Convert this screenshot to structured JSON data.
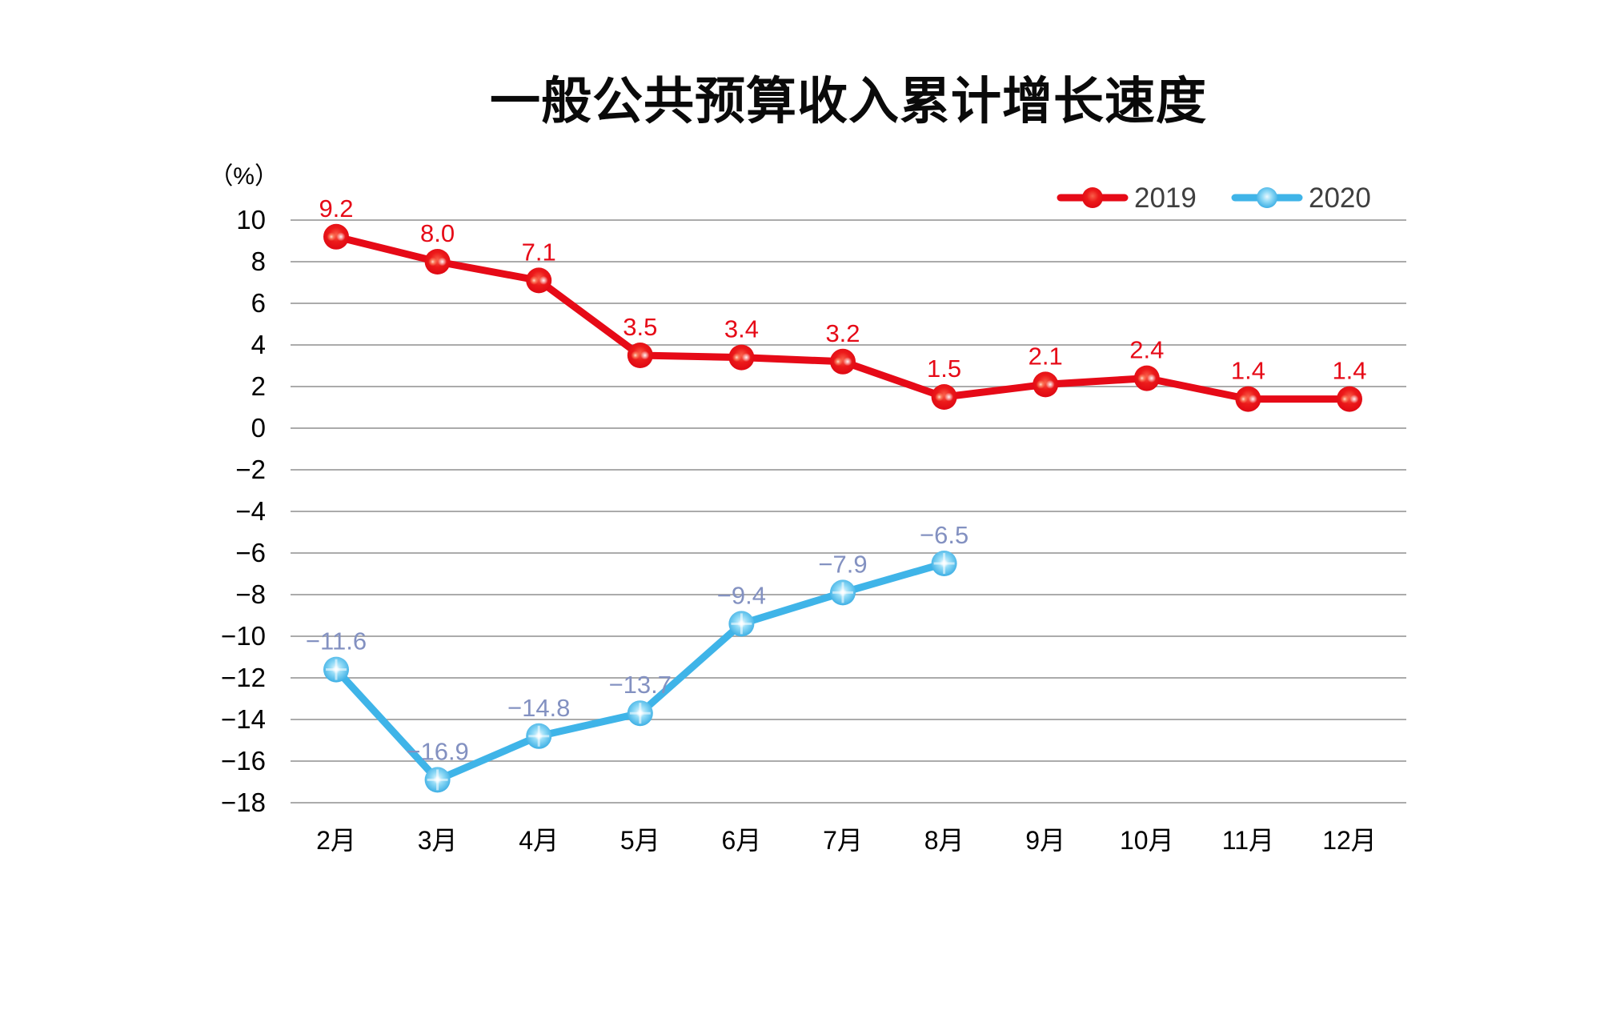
{
  "title": "一般公共预算收入累计增长速度",
  "y_axis": {
    "unit_label": "（%）",
    "max": 10,
    "min": -18,
    "step": 2,
    "tick_labels": [
      "10",
      "8",
      "6",
      "4",
      "2",
      "0",
      "−2",
      "−4",
      "−6",
      "−8",
      "−10",
      "−12",
      "−14",
      "−16",
      "−18"
    ]
  },
  "x_axis": {
    "categories": [
      "2月",
      "3月",
      "4月",
      "5月",
      "6月",
      "7月",
      "8月",
      "9月",
      "10月",
      "11月",
      "12月"
    ]
  },
  "legend": {
    "position": "top-right",
    "items": [
      {
        "label": "2019",
        "color": "#e60a17"
      },
      {
        "label": "2020",
        "color": "#3fb4e8"
      }
    ]
  },
  "chart_data": {
    "type": "line",
    "title": "一般公共预算收入累计增长速度",
    "ylabel": "（%）",
    "ylim": [
      -18,
      10
    ],
    "grid": true,
    "legend_position": "top-right",
    "categories": [
      "2月",
      "3月",
      "4月",
      "5月",
      "6月",
      "7月",
      "8月",
      "9月",
      "10月",
      "11月",
      "12月"
    ],
    "series": [
      {
        "name": "2019",
        "color": "#e60a17",
        "label_color": "#e60a17",
        "values": [
          9.2,
          8.0,
          7.1,
          3.5,
          3.4,
          3.2,
          1.5,
          2.1,
          2.4,
          1.4,
          1.4
        ],
        "labels": [
          "9.2",
          "8.0",
          "7.1",
          "3.5",
          "3.4",
          "3.2",
          "1.5",
          "2.1",
          "2.4",
          "1.4",
          "1.4"
        ]
      },
      {
        "name": "2020",
        "color": "#3fb4e8",
        "label_color": "#8391c1",
        "values": [
          -11.6,
          -16.9,
          -14.8,
          -13.7,
          -9.4,
          -7.9,
          -6.5
        ],
        "labels": [
          "−11.6",
          "−16.9",
          "−14.8",
          "−13.7",
          "−9.4",
          "−7.9",
          "−6.5"
        ]
      }
    ]
  },
  "colors": {
    "background": "#ffffff",
    "grid": "#ababab",
    "axis_text": "#000000",
    "legend_text": "#3f3f3f"
  }
}
